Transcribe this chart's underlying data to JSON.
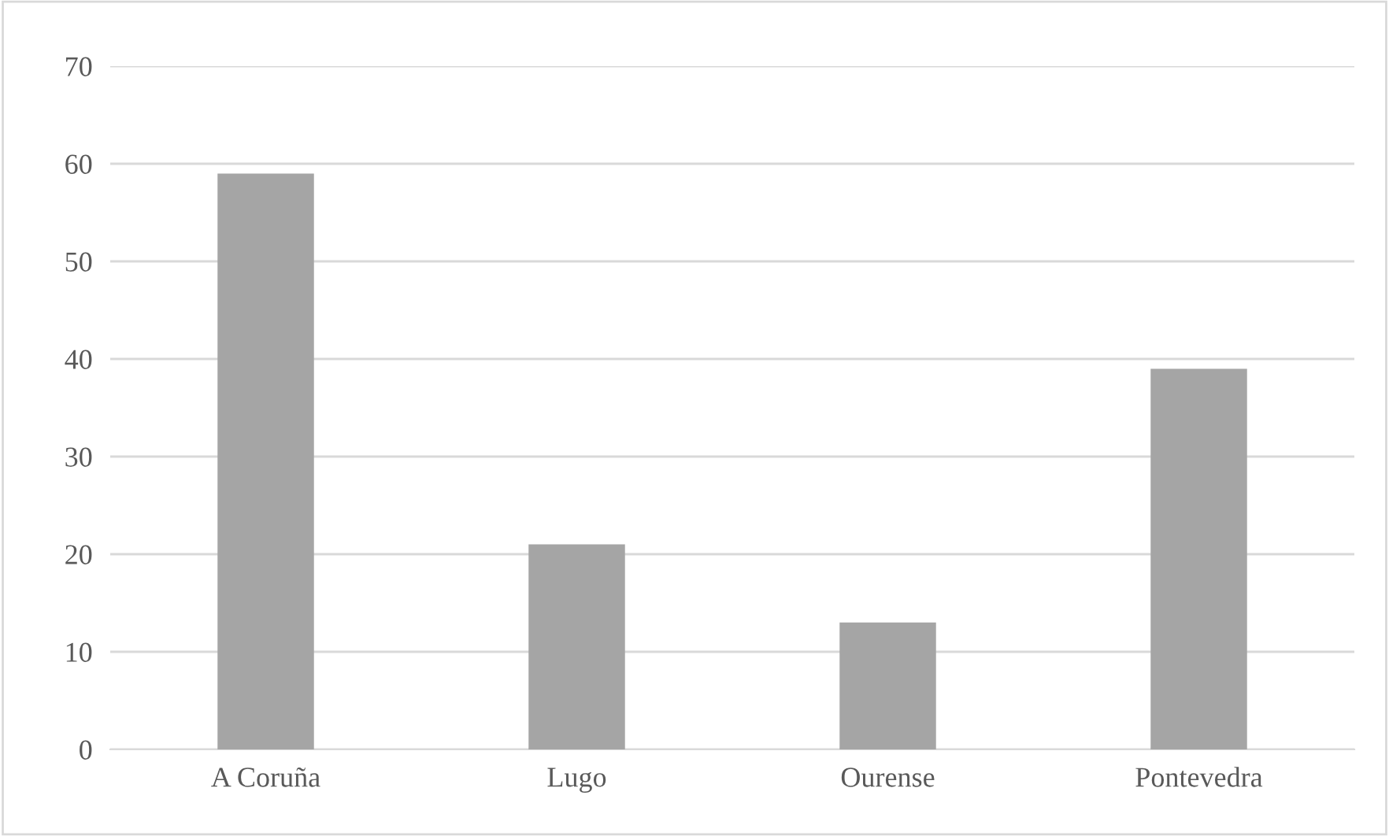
{
  "chart_data": {
    "type": "bar",
    "categories": [
      "A Coruña",
      "Lugo",
      "Ourense",
      "Pontevedra"
    ],
    "values": [
      59,
      21,
      13,
      39
    ],
    "color": "#a5a5a5",
    "ylim": [
      0,
      70
    ],
    "yticks": [
      0,
      10,
      20,
      30,
      40,
      50,
      60,
      70
    ],
    "grid": "y",
    "legend": false
  }
}
